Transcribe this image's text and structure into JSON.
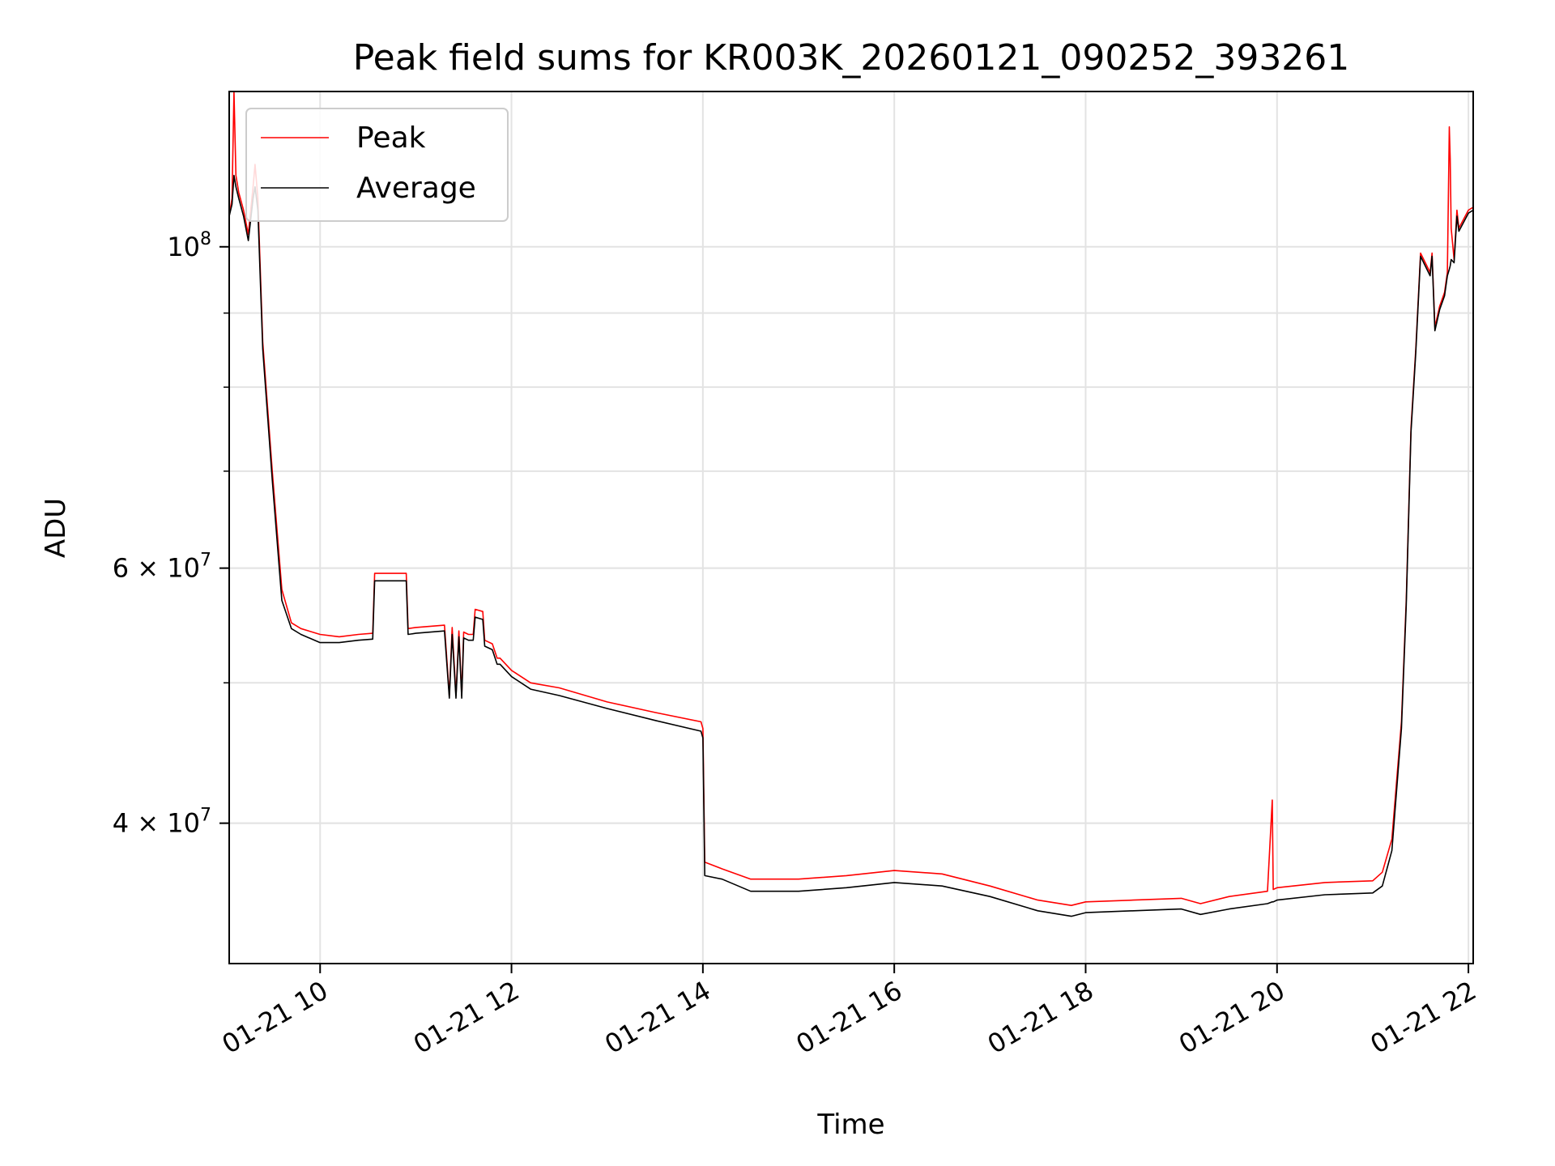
{
  "chart_data": {
    "type": "line",
    "title": "Peak field sums for KR003K_20260121_090252_393261",
    "xlabel": "Time",
    "ylabel": "ADU",
    "yscale": "log",
    "grid": true,
    "legend_position": "top-left",
    "xlim": [
      9.05,
      22.05
    ],
    "ylim": [
      32000000,
      128000000
    ],
    "x_ticks": [
      {
        "value": 10,
        "label": "01-21 10"
      },
      {
        "value": 12,
        "label": "01-21 12"
      },
      {
        "value": 14,
        "label": "01-21 14"
      },
      {
        "value": 16,
        "label": "01-21 16"
      },
      {
        "value": 18,
        "label": "01-21 18"
      },
      {
        "value": 20,
        "label": "01-21 20"
      },
      {
        "value": 22,
        "label": "01-21 22"
      }
    ],
    "y_major_ticks": [
      {
        "value": 100000000,
        "mantissa": "10",
        "exponent": "8"
      },
      {
        "value": 60000000,
        "mantissa": "6 × 10",
        "exponent": "7"
      },
      {
        "value": 40000000,
        "mantissa": "4 × 10",
        "exponent": "7"
      }
    ],
    "y_minor_ticks": [
      40000000,
      50000000,
      60000000,
      70000000,
      80000000,
      90000000
    ],
    "series": [
      {
        "name": "Peak",
        "color": "#ff0000",
        "x": [
          9.05,
          9.08,
          9.1,
          9.12,
          9.15,
          9.2,
          9.25,
          9.3,
          9.32,
          9.35,
          9.4,
          9.5,
          9.6,
          9.7,
          9.8,
          10.0,
          10.2,
          10.4,
          10.55,
          10.57,
          10.9,
          10.92,
          11.0,
          11.3,
          11.35,
          11.38,
          11.42,
          11.45,
          11.48,
          11.5,
          11.55,
          11.6,
          11.62,
          11.7,
          11.72,
          11.8,
          11.85,
          11.88,
          12.0,
          12.2,
          12.5,
          13.0,
          13.5,
          13.98,
          14.0,
          14.02,
          14.2,
          14.5,
          15.0,
          15.5,
          16.0,
          16.5,
          17.0,
          17.5,
          17.85,
          18.0,
          18.5,
          19.0,
          19.2,
          19.5,
          19.9,
          19.95,
          19.96,
          20.0,
          20.5,
          21.0,
          21.1,
          21.2,
          21.3,
          21.35,
          21.4,
          21.45,
          21.5,
          21.6,
          21.62,
          21.65,
          21.7,
          21.75,
          21.78,
          21.8,
          21.81,
          21.82,
          21.85,
          21.88,
          21.9,
          22.0,
          22.05
        ],
        "values": [
          105000000,
          108000000,
          128000000,
          112000000,
          109000000,
          106000000,
          102000000,
          110000000,
          114000000,
          108000000,
          86000000,
          70000000,
          58000000,
          55000000,
          54500000,
          54000000,
          53800000,
          54000000,
          54100000,
          59500000,
          59500000,
          54500000,
          54600000,
          54800000,
          49000000,
          54600000,
          49000000,
          54300000,
          49000000,
          54200000,
          54000000,
          54000000,
          56200000,
          56000000,
          53500000,
          53200000,
          52000000,
          52000000,
          51000000,
          50000000,
          49600000,
          48500000,
          47700000,
          47000000,
          46500000,
          37600000,
          37200000,
          36600000,
          36600000,
          36800000,
          37100000,
          36900000,
          36200000,
          35400000,
          35100000,
          35300000,
          35400000,
          35500000,
          35200000,
          35600000,
          35900000,
          41500000,
          36000000,
          36100000,
          36400000,
          36500000,
          37000000,
          39000000,
          47000000,
          57000000,
          75000000,
          85000000,
          99000000,
          96000000,
          99000000,
          88000000,
          91000000,
          93000000,
          96000000,
          121000000,
          115000000,
          103000000,
          98000000,
          106000000,
          103000000,
          106000000,
          106500000
        ]
      },
      {
        "name": "Average",
        "color": "#000000",
        "x": [
          9.05,
          9.08,
          9.1,
          9.12,
          9.15,
          9.2,
          9.25,
          9.3,
          9.32,
          9.35,
          9.4,
          9.5,
          9.6,
          9.7,
          9.8,
          10.0,
          10.2,
          10.4,
          10.55,
          10.57,
          10.9,
          10.92,
          11.0,
          11.3,
          11.35,
          11.38,
          11.42,
          11.45,
          11.48,
          11.5,
          11.55,
          11.6,
          11.62,
          11.7,
          11.72,
          11.8,
          11.85,
          11.88,
          12.0,
          12.2,
          12.5,
          13.0,
          13.5,
          13.98,
          14.0,
          14.02,
          14.2,
          14.5,
          15.0,
          15.5,
          16.0,
          16.5,
          17.0,
          17.5,
          17.85,
          18.0,
          18.5,
          19.0,
          19.2,
          19.5,
          19.9,
          19.95,
          19.96,
          20.0,
          20.5,
          21.0,
          21.1,
          21.2,
          21.3,
          21.35,
          21.4,
          21.45,
          21.5,
          21.6,
          21.62,
          21.65,
          21.7,
          21.75,
          21.78,
          21.8,
          21.81,
          21.82,
          21.85,
          21.88,
          21.9,
          22.0,
          22.05
        ],
        "values": [
          105000000,
          107000000,
          112000000,
          110000000,
          108000000,
          105000000,
          101000000,
          108000000,
          110000000,
          106000000,
          85000000,
          69000000,
          57000000,
          54500000,
          54000000,
          53300000,
          53300000,
          53500000,
          53600000,
          58800000,
          58800000,
          54000000,
          54100000,
          54300000,
          48800000,
          54000000,
          48800000,
          53800000,
          48800000,
          53700000,
          53500000,
          53500000,
          55500000,
          55300000,
          53000000,
          52700000,
          51500000,
          51500000,
          50500000,
          49500000,
          49000000,
          48000000,
          47100000,
          46300000,
          45800000,
          36800000,
          36600000,
          35900000,
          35900000,
          36100000,
          36400000,
          36200000,
          35600000,
          34800000,
          34500000,
          34700000,
          34800000,
          34900000,
          34600000,
          34900000,
          35200000,
          35300000,
          35300000,
          35400000,
          35700000,
          35800000,
          36200000,
          38300000,
          46500000,
          56500000,
          74500000,
          84500000,
          98500000,
          95500000,
          98500000,
          87500000,
          90500000,
          92500000,
          95500000,
          96500000,
          97000000,
          98000000,
          97500000,
          105000000,
          102500000,
          105500000,
          106000000
        ]
      }
    ]
  }
}
